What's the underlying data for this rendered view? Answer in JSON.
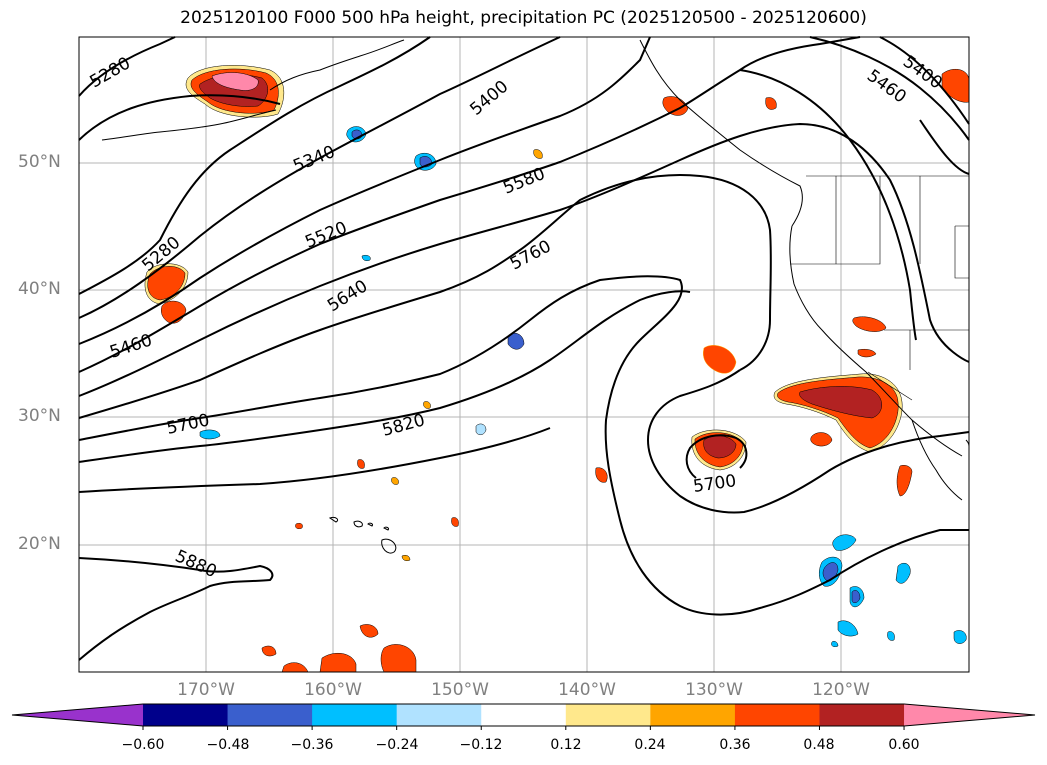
{
  "title": "2025120100 F000 500 hPa height, precipitation PC (2025120500 - 2025120600)",
  "lat_labels": [
    "50°N",
    "40°N",
    "30°N",
    "20°N"
  ],
  "lon_labels": [
    "170°W",
    "160°W",
    "150°W",
    "140°W",
    "130°W",
    "120°W"
  ],
  "contour_labels": [
    "5280",
    "5400",
    "5340",
    "5580",
    "5520",
    "5280",
    "5760",
    "5640",
    "5460",
    "5700",
    "5820",
    "5700",
    "5880",
    "5400",
    "5460"
  ],
  "colorbar": {
    "ticks": [
      "−0.60",
      "−0.48",
      "−0.36",
      "−0.24",
      "−0.12",
      "0.12",
      "0.24",
      "0.36",
      "0.48",
      "0.60"
    ],
    "colors": [
      "#9932cc",
      "#00008b",
      "#3a5fcd",
      "#00bfff",
      "#b0e2ff",
      "#ffffff",
      "#ffe88c",
      "#ffa500",
      "#ff4500",
      "#b22222",
      "#ff88aa"
    ],
    "extend": "both"
  },
  "map": {
    "extent_lon": [
      -180,
      -110
    ],
    "extent_lat": [
      10,
      60
    ],
    "grid": true
  }
}
